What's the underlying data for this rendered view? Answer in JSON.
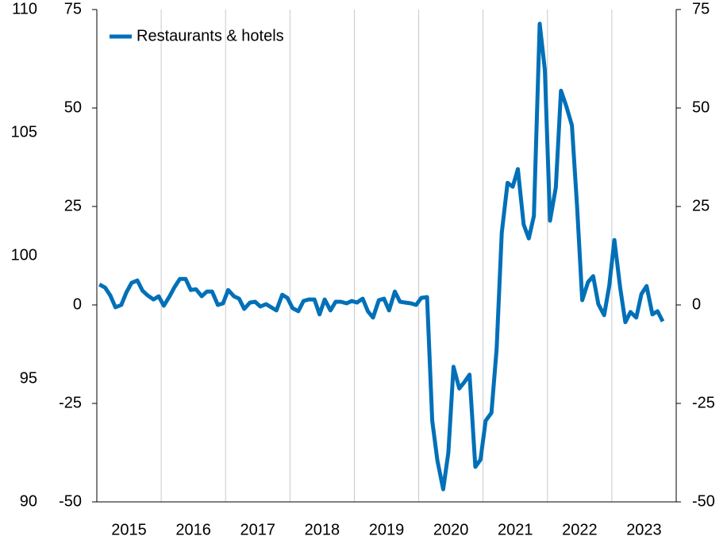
{
  "chart_data": {
    "type": "line",
    "x": [
      2015.04,
      2015.13,
      2015.21,
      2015.29,
      2015.38,
      2015.46,
      2015.54,
      2015.63,
      2015.71,
      2015.79,
      2015.88,
      2015.96,
      2016.04,
      2016.13,
      2016.21,
      2016.29,
      2016.38,
      2016.46,
      2016.54,
      2016.63,
      2016.71,
      2016.79,
      2016.88,
      2016.96,
      2017.04,
      2017.13,
      2017.21,
      2017.29,
      2017.38,
      2017.46,
      2017.54,
      2017.63,
      2017.71,
      2017.79,
      2017.88,
      2017.96,
      2018.04,
      2018.13,
      2018.21,
      2018.29,
      2018.38,
      2018.46,
      2018.54,
      2018.63,
      2018.71,
      2018.79,
      2018.88,
      2018.96,
      2019.04,
      2019.13,
      2019.21,
      2019.29,
      2019.38,
      2019.46,
      2019.54,
      2019.63,
      2019.71,
      2019.79,
      2019.88,
      2019.96,
      2020.04,
      2020.13,
      2020.21,
      2020.29,
      2020.38,
      2020.46,
      2020.54,
      2020.63,
      2020.71,
      2020.79,
      2020.88,
      2020.96,
      2021.04,
      2021.13,
      2021.21,
      2021.29,
      2021.38,
      2021.46,
      2021.54,
      2021.63,
      2021.71,
      2021.79,
      2021.88,
      2021.96,
      2022.04,
      2022.13,
      2022.21,
      2022.29,
      2022.38,
      2022.46,
      2022.54,
      2022.63,
      2022.71,
      2022.79,
      2022.88,
      2022.96,
      2023.04,
      2023.13,
      2023.21,
      2023.29,
      2023.38,
      2023.46,
      2023.54,
      2023.63,
      2023.71,
      2023.79
    ],
    "series": [
      {
        "name": "Restaurants & hotels",
        "color": "#0070b8",
        "values": [
          5.2,
          4.4,
          2.4,
          -0.6,
          0,
          3.2,
          5.6,
          6.2,
          3.6,
          2.4,
          1.4,
          2.2,
          -0.2,
          2.2,
          4.6,
          6.6,
          6.6,
          3.8,
          4.0,
          2.2,
          3.4,
          3.4,
          0,
          0.4,
          3.8,
          2.2,
          1.6,
          -1.0,
          0.6,
          0.8,
          -0.4,
          0.2,
          -0.6,
          -1.4,
          2.6,
          1.8,
          -0.8,
          -1.6,
          1.0,
          1.4,
          1.4,
          -2.4,
          1.4,
          -1.4,
          0.8,
          0.8,
          0.4,
          1.0,
          0.6,
          1.6,
          -1.6,
          -3.2,
          1.2,
          1.6,
          -1.4,
          3.4,
          0.8,
          0.6,
          0.4,
          0,
          1.8,
          2.0,
          -29.4,
          -39.5,
          -46.8,
          -37.5,
          -15.7,
          -21.2,
          -19.6,
          -17.7,
          -41.1,
          -39.3,
          -29.4,
          -27.4,
          -11.3,
          18.3,
          31.0,
          30.0,
          34.5,
          20.4,
          16.9,
          22.6,
          71.4,
          59.7,
          21.4,
          29.8,
          54.4,
          50.6,
          45.6,
          25.0,
          1.2,
          5.8,
          7.3,
          0.2,
          -2.6,
          4.8,
          16.5,
          4.4,
          -4.4,
          -1.8,
          -3.2,
          2.8,
          4.8,
          -2.4,
          -1.6,
          -4.2
        ]
      }
    ],
    "xlim": [
      2015,
      2024
    ],
    "xticks": [
      {
        "value": 2015.5,
        "label": "2015"
      },
      {
        "value": 2016.5,
        "label": "2016"
      },
      {
        "value": 2017.5,
        "label": "2017"
      },
      {
        "value": 2018.5,
        "label": "2018"
      },
      {
        "value": 2019.5,
        "label": "2019"
      },
      {
        "value": 2020.5,
        "label": "2020"
      },
      {
        "value": 2021.5,
        "label": "2021"
      },
      {
        "value": 2022.5,
        "label": "2022"
      },
      {
        "value": 2023.5,
        "label": "2023"
      }
    ],
    "xgrid": [
      2016,
      2017,
      2018,
      2019,
      2020,
      2021,
      2022,
      2023
    ],
    "ylim": [
      -50,
      75
    ],
    "yticks": [
      -50,
      -25,
      0,
      25,
      50,
      75
    ],
    "y2lim": [
      -50,
      75
    ],
    "y2ticks": [
      -50,
      -25,
      0,
      25,
      50,
      75
    ],
    "y3lim": [
      90,
      110
    ],
    "y3ticks": [
      90,
      95,
      100,
      105,
      110
    ],
    "legend": "upper left"
  }
}
